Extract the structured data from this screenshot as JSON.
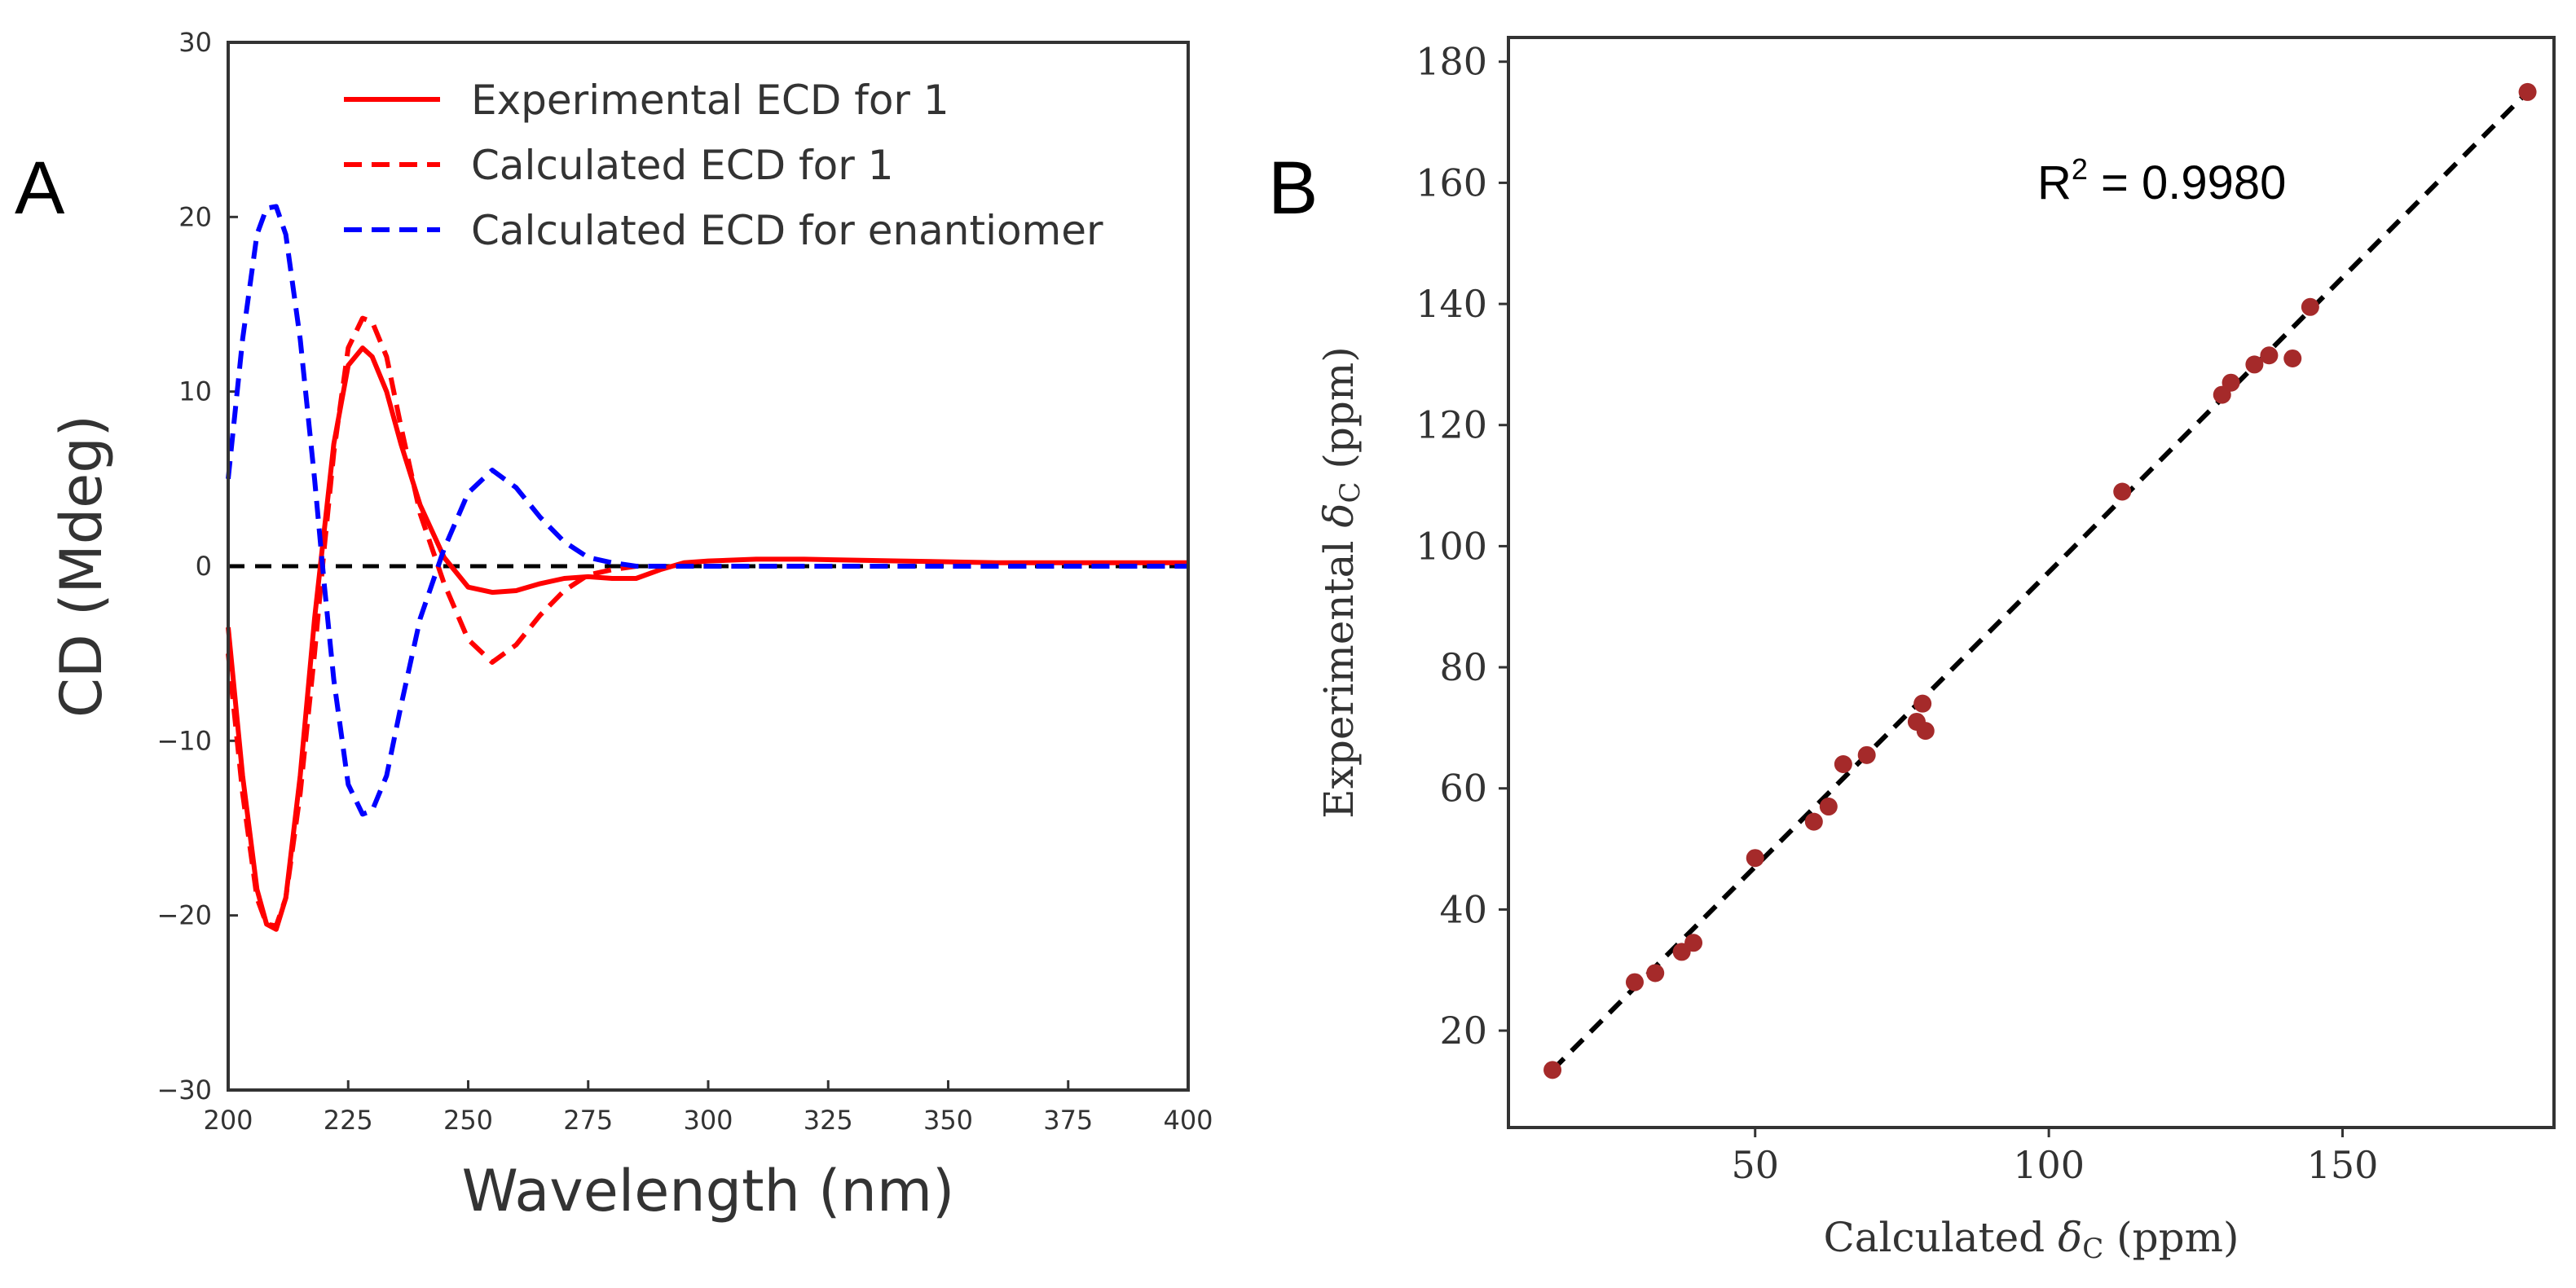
{
  "chart_data": [
    {
      "panel": "A",
      "type": "line",
      "xlabel": "Wavelength (nm)",
      "ylabel": "CD (Mdeg)",
      "xlim": [
        200,
        400
      ],
      "ylim": [
        -30,
        30
      ],
      "xticks": [
        200,
        225,
        250,
        275,
        300,
        325,
        350,
        375,
        400
      ],
      "yticks": [
        -30,
        -20,
        -10,
        0,
        10,
        20,
        30
      ],
      "ytick_labels": [
        "−30",
        "−20",
        "−10",
        "0",
        "10",
        "20",
        "30"
      ],
      "x": [
        200,
        203,
        206,
        208,
        210,
        212,
        215,
        218,
        220,
        222,
        225,
        228,
        230,
        233,
        236,
        240,
        245,
        250,
        255,
        260,
        265,
        270,
        275,
        280,
        285,
        290,
        295,
        300,
        310,
        320,
        340,
        360,
        380,
        400
      ],
      "series": [
        {
          "name": "Experimental ECD for 1",
          "color": "#ff0000",
          "style": "solid",
          "values": [
            -3.5,
            -12,
            -18.5,
            -20.5,
            -20.8,
            -19,
            -12,
            -3,
            2,
            7,
            11.5,
            12.5,
            12,
            10,
            7,
            3.5,
            0.5,
            -1.2,
            -1.5,
            -1.4,
            -1,
            -0.7,
            -0.6,
            -0.7,
            -0.7,
            -0.2,
            0.2,
            0.3,
            0.4,
            0.4,
            0.3,
            0.2,
            0.2,
            0.2
          ]
        },
        {
          "name": "Calculated ECD for 1",
          "color": "#ff0000",
          "style": "dashed",
          "values": [
            -5,
            -13,
            -19,
            -20.5,
            -20.6,
            -19,
            -13,
            -5,
            1,
            6.5,
            12.5,
            14.2,
            14,
            12,
            8,
            3,
            -1,
            -4.2,
            -5.5,
            -4.5,
            -2.8,
            -1.4,
            -0.5,
            -0.2,
            0,
            0,
            0,
            0,
            0,
            0,
            0,
            0,
            0,
            0
          ]
        },
        {
          "name": "Calculated ECD for enantiomer",
          "color": "#0000ff",
          "style": "dashed",
          "values": [
            5,
            13,
            19,
            20.5,
            20.6,
            19,
            13,
            5,
            -1,
            -6.5,
            -12.5,
            -14.2,
            -14,
            -12,
            -8,
            -3,
            1,
            4.2,
            5.5,
            4.5,
            2.8,
            1.4,
            0.5,
            0.2,
            0,
            0,
            0,
            0,
            0,
            0,
            0,
            0,
            0,
            0
          ]
        }
      ],
      "reference_line": {
        "y": 0,
        "color": "#000000",
        "style": "dashed"
      },
      "legend_placement": "top-right"
    },
    {
      "panel": "B",
      "type": "scatter",
      "xlabel_main": "Calculated ",
      "xlabel_symbol": "δ",
      "xlabel_sub": "C",
      "xlabel_unit": " (ppm)",
      "ylabel_main": "Experimental ",
      "ylabel_symbol": "δ",
      "ylabel_sub": "C",
      "ylabel_unit": " (ppm)",
      "xlim": [
        8,
        186
      ],
      "ylim": [
        4,
        184
      ],
      "xticks": [
        50,
        100,
        150
      ],
      "yticks": [
        20,
        40,
        60,
        80,
        100,
        120,
        140,
        160,
        180
      ],
      "point_color": "#a52a2a",
      "points": [
        [
          15.5,
          13.5
        ],
        [
          29.5,
          28
        ],
        [
          33,
          29.5
        ],
        [
          37.5,
          33
        ],
        [
          39.5,
          34.5
        ],
        [
          50,
          48.5
        ],
        [
          60,
          54.5
        ],
        [
          62.5,
          57
        ],
        [
          65,
          64
        ],
        [
          69,
          65.5
        ],
        [
          77.5,
          71
        ],
        [
          78.5,
          74
        ],
        [
          79,
          69.5
        ],
        [
          112.5,
          109
        ],
        [
          129.5,
          125
        ],
        [
          131,
          127
        ],
        [
          135,
          130
        ],
        [
          137.5,
          131.5
        ],
        [
          141.5,
          131
        ],
        [
          144.5,
          139.5
        ],
        [
          181.5,
          175
        ]
      ],
      "fit_line": {
        "x": [
          15.5,
          181.5
        ],
        "y": [
          13.5,
          175
        ],
        "color": "#000000",
        "style": "dashed"
      },
      "annotation": {
        "text_main": "R",
        "text_sup": "2",
        "text_rest": " = 0.9980",
        "x": 100,
        "y": 160
      }
    }
  ],
  "panel_labels": [
    "A",
    "B"
  ]
}
